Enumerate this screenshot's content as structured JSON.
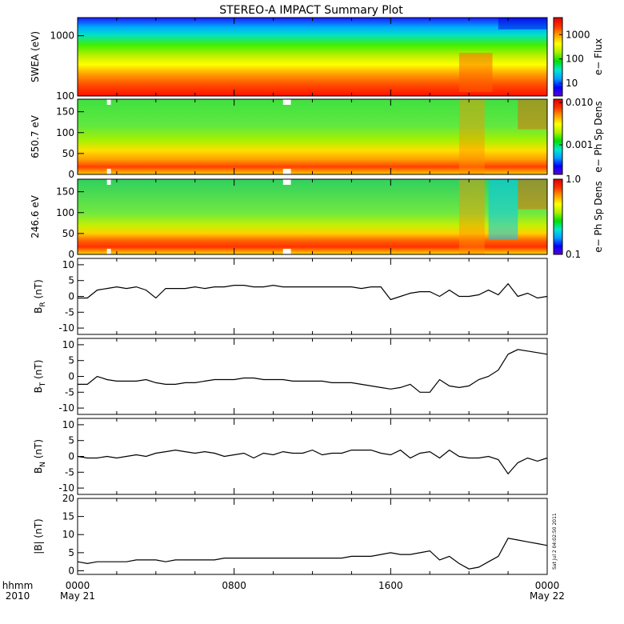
{
  "title": "STEREO-A IMPACT Summary Plot",
  "stamp": "Sat Jul  2 04:02:50 2011",
  "x_axis": {
    "row1_labels": [
      "hhmm",
      "0000",
      "0800",
      "1600",
      "0000"
    ],
    "row2_labels": [
      "2010",
      "May 21",
      "May 22"
    ]
  },
  "chart_data": [
    {
      "type": "heatmap",
      "ylabel": "SWEA (eV)",
      "yscale": "log",
      "ylim": [
        100,
        2000
      ],
      "yticks": [
        "1000",
        "100"
      ],
      "colorbar": {
        "label": "e− Flux",
        "scale": "log",
        "range": [
          3,
          5000
        ],
        "ticks": [
          "1000",
          "100",
          "10"
        ]
      }
    },
    {
      "type": "heatmap",
      "ylabel": "650.7 eV",
      "ylim": [
        0,
        180
      ],
      "yticks": [
        "150",
        "100",
        "50",
        "0"
      ],
      "colorbar": {
        "label": "e− Ph Sp Dens",
        "scale": "log",
        "range": [
          0.0002,
          0.012
        ],
        "ticks": [
          "0.010",
          "0.001"
        ]
      }
    },
    {
      "type": "heatmap",
      "ylabel": "246.6 eV",
      "ylim": [
        0,
        180
      ],
      "yticks": [
        "150",
        "100",
        "50",
        "0"
      ],
      "colorbar": {
        "label": "e− Ph Sp Dens",
        "scale": "log",
        "range": [
          0.1,
          1.0
        ],
        "ticks": [
          "1.0",
          "0.1"
        ]
      }
    },
    {
      "type": "line",
      "ylabel": "B_R (nT)",
      "ylim": [
        -12,
        12
      ],
      "yticks": [
        "10",
        "5",
        "0",
        "-5",
        "-10"
      ],
      "x_hours": [
        0,
        0.5,
        1,
        1.5,
        2,
        2.5,
        3,
        3.5,
        4,
        4.5,
        5,
        5.5,
        6,
        6.5,
        7,
        7.5,
        8,
        8.5,
        9,
        9.5,
        10,
        10.5,
        11,
        11.5,
        12,
        12.5,
        13,
        13.5,
        14,
        14.5,
        15,
        15.5,
        16,
        16.5,
        17,
        17.5,
        18,
        18.5,
        19,
        19.5,
        20,
        20.5,
        21,
        21.5,
        22,
        22.5,
        23,
        23.5,
        24
      ],
      "values": [
        -0.5,
        -0.5,
        2,
        2.5,
        3,
        2.5,
        3,
        2,
        -0.5,
        2.5,
        2.5,
        2.5,
        3,
        2.5,
        3,
        3,
        3.5,
        3.5,
        3,
        3,
        3.5,
        3,
        3,
        3,
        3,
        3,
        3,
        3,
        3,
        2.5,
        3,
        3,
        -1,
        0,
        1,
        1.5,
        1.5,
        0,
        2,
        0,
        0,
        0.5,
        2,
        0.5,
        4,
        0,
        1,
        -0.5,
        0
      ]
    },
    {
      "type": "line",
      "ylabel": "B_T (nT)",
      "ylim": [
        -12,
        12
      ],
      "yticks": [
        "10",
        "5",
        "0",
        "-5",
        "-10"
      ],
      "x_hours": [
        0,
        0.5,
        1,
        1.5,
        2,
        2.5,
        3,
        3.5,
        4,
        4.5,
        5,
        5.5,
        6,
        6.5,
        7,
        7.5,
        8,
        8.5,
        9,
        9.5,
        10,
        10.5,
        11,
        11.5,
        12,
        12.5,
        13,
        13.5,
        14,
        14.5,
        15,
        15.5,
        16,
        16.5,
        17,
        17.5,
        18,
        18.5,
        19,
        19.5,
        20,
        20.5,
        21,
        21.5,
        22,
        22.5,
        23,
        23.5,
        24
      ],
      "values": [
        -2.5,
        -2.5,
        0,
        -1,
        -1.5,
        -1.5,
        -1.5,
        -1,
        -2,
        -2.5,
        -2.5,
        -2,
        -2,
        -1.5,
        -1,
        -1,
        -1,
        -0.5,
        -0.5,
        -1,
        -1,
        -1,
        -1.5,
        -1.5,
        -1.5,
        -1.5,
        -2,
        -2,
        -2,
        -2.5,
        -3,
        -3.5,
        -4,
        -3.5,
        -2.5,
        -5,
        -5,
        -1,
        -3,
        -3.5,
        -3,
        -1,
        0,
        2,
        7,
        8.5,
        8,
        7.5,
        7
      ]
    },
    {
      "type": "line",
      "ylabel": "B_N (nT)",
      "ylim": [
        -12,
        12
      ],
      "yticks": [
        "10",
        "5",
        "0",
        "-5",
        "-10"
      ],
      "x_hours": [
        0,
        0.5,
        1,
        1.5,
        2,
        2.5,
        3,
        3.5,
        4,
        4.5,
        5,
        5.5,
        6,
        6.5,
        7,
        7.5,
        8,
        8.5,
        9,
        9.5,
        10,
        10.5,
        11,
        11.5,
        12,
        12.5,
        13,
        13.5,
        14,
        14.5,
        15,
        15.5,
        16,
        16.5,
        17,
        17.5,
        18,
        18.5,
        19,
        19.5,
        20,
        20.5,
        21,
        21.5,
        22,
        22.5,
        23,
        23.5,
        24
      ],
      "values": [
        0,
        -0.5,
        -0.5,
        0,
        -0.5,
        0,
        0.5,
        0,
        1,
        1.5,
        2,
        1.5,
        1,
        1.5,
        1,
        0,
        0.5,
        1,
        -0.5,
        1,
        0.5,
        1.5,
        1,
        1,
        2,
        0.5,
        1,
        1,
        2,
        2,
        2,
        1,
        0.5,
        2,
        -0.5,
        1,
        1.5,
        -0.5,
        2,
        0,
        -0.5,
        -0.5,
        0,
        -1,
        -5.5,
        -2,
        -0.5,
        -1.5,
        -0.5
      ]
    },
    {
      "type": "line",
      "ylabel": "|B| (nT)",
      "ylim": [
        -1,
        20
      ],
      "yticks": [
        "20",
        "15",
        "10",
        "5",
        "0"
      ],
      "x_hours": [
        0,
        0.5,
        1,
        1.5,
        2,
        2.5,
        3,
        3.5,
        4,
        4.5,
        5,
        5.5,
        6,
        6.5,
        7,
        7.5,
        8,
        8.5,
        9,
        9.5,
        10,
        10.5,
        11,
        11.5,
        12,
        12.5,
        13,
        13.5,
        14,
        14.5,
        15,
        15.5,
        16,
        16.5,
        17,
        17.5,
        18,
        18.5,
        19,
        19.5,
        20,
        20.5,
        21,
        21.5,
        22,
        22.5,
        23,
        23.5,
        24
      ],
      "values": [
        2.5,
        2,
        2.5,
        2.5,
        2.5,
        2.5,
        3,
        3,
        3,
        2.5,
        3,
        3,
        3,
        3,
        3,
        3.5,
        3.5,
        3.5,
        3.5,
        3.5,
        3.5,
        3.5,
        3.5,
        3.5,
        3.5,
        3.5,
        3.5,
        3.5,
        4,
        4,
        4,
        4.5,
        5,
        4.5,
        4.5,
        5,
        5.5,
        3,
        4,
        2,
        0.5,
        1,
        2.5,
        4,
        9,
        8.5,
        8,
        7.5,
        7
      ]
    }
  ]
}
